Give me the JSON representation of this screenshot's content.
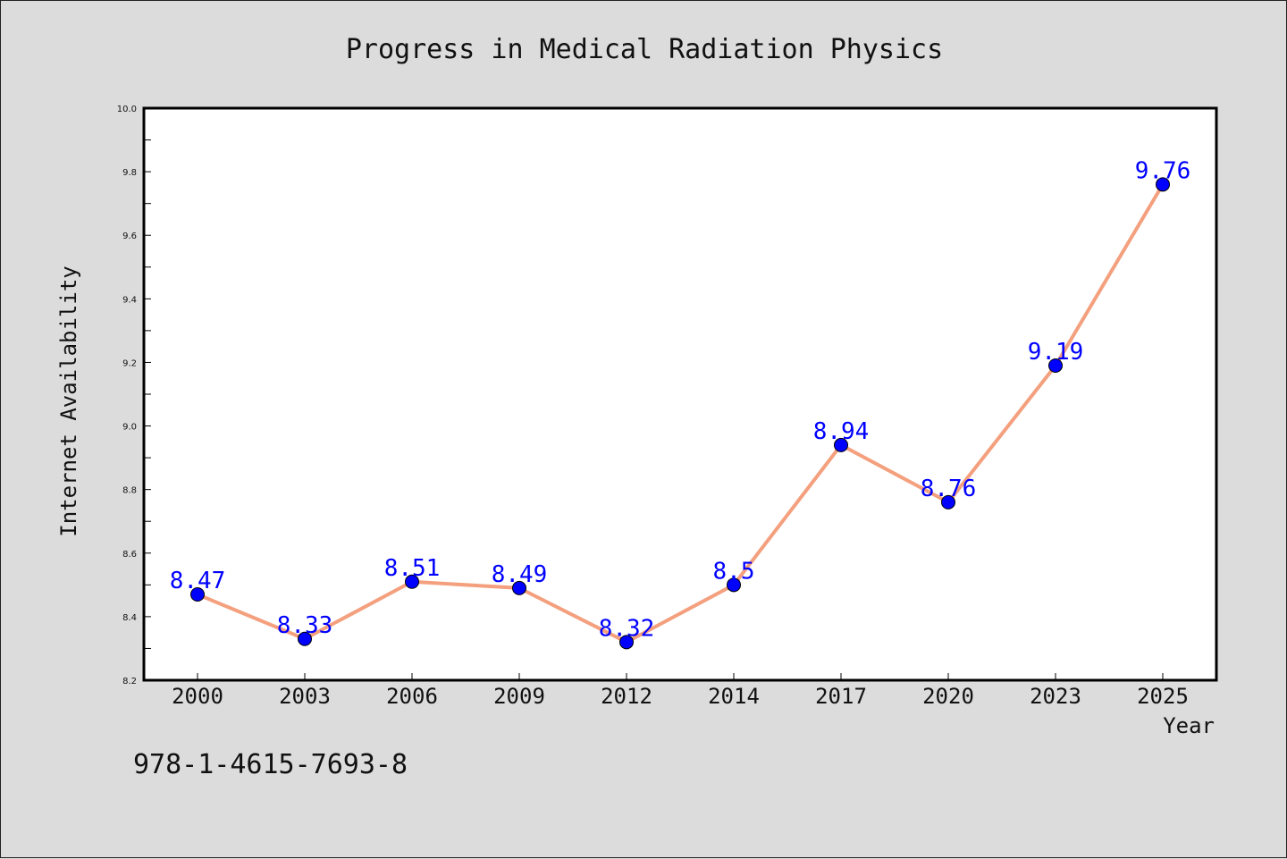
{
  "chart_data": {
    "type": "line",
    "title": "Progress in Medical Radiation Physics",
    "xlabel": "Year",
    "ylabel": "Internet Availability",
    "categories": [
      "2000",
      "2003",
      "2006",
      "2009",
      "2012",
      "2014",
      "2017",
      "2020",
      "2023",
      "2025"
    ],
    "series": [
      {
        "values": [
          8.47,
          8.33,
          8.51,
          8.49,
          8.32,
          8.5,
          8.94,
          8.76,
          9.19,
          9.76
        ],
        "labels": [
          "8.47",
          "8.33",
          "8.51",
          "8.49",
          "8.32",
          "8.5",
          "8.94",
          "8.76",
          "9.19",
          "9.76"
        ],
        "line_color": "#f4a07e",
        "marker_color": "#0000ff"
      }
    ],
    "ylim": [
      8.2,
      10.0
    ],
    "yticks": [
      "8.2",
      "8.4",
      "8.6",
      "8.8",
      "9.0",
      "9.2",
      "9.4",
      "9.6",
      "9.8",
      "10.0"
    ],
    "grid": false,
    "legend": "none"
  },
  "annotation": {
    "text": "978-1-4615-7693-8"
  },
  "colors": {
    "background": "#dcdcdc",
    "plot_background": "#ffffff",
    "data_label": "#0000ff"
  }
}
